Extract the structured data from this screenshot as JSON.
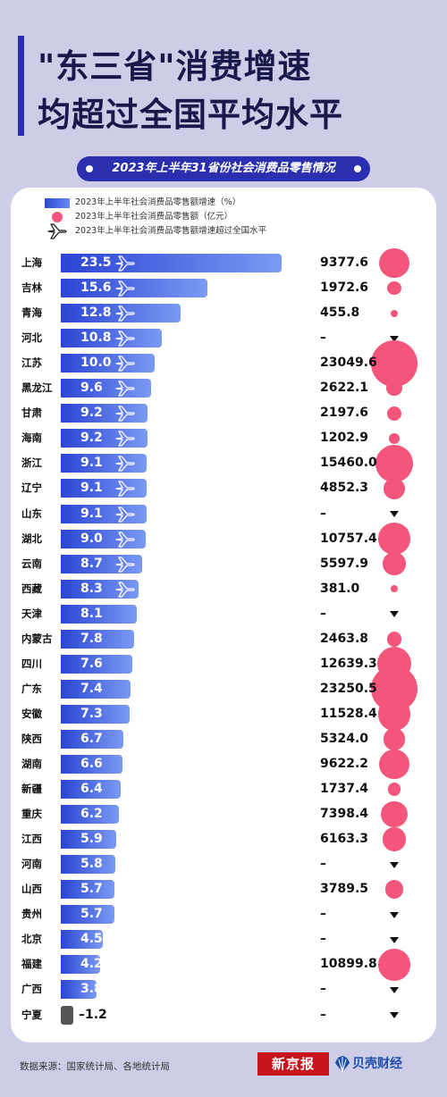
{
  "title_line1": "\"东三省\"消费增速",
  "title_line2": "均超过全国平均水平",
  "footer": {
    "source": "数据来源：国家统计局、各地统计局",
    "logo_xinjingbao": "新京报",
    "logo_beike": "贝壳财经"
  },
  "colors": {
    "bar_start": "#2b44d4",
    "bar_end": "#7b9af3",
    "bubble": "#f4557a",
    "negative": "#555555",
    "accent": "#2a2fb0"
  },
  "chart_data": {
    "type": "bar",
    "orientation": "horizontal",
    "title": "2023年上半年31省份社会消费品零售情况",
    "legend": [
      "2023年上半年社会消费品零售额增速（%）",
      "2023年上半年社会消费品零售额（亿元）",
      "2023年上半年社会消费品零售额增速超过全国水平"
    ],
    "missing_label": "–",
    "rows": [
      {
        "province": "上海",
        "growth": 23.5,
        "growth_label": "23.5",
        "retail": 9377.6,
        "retail_label": "9377.6",
        "above_national": true
      },
      {
        "province": "吉林",
        "growth": 15.6,
        "growth_label": "15.6",
        "retail": 1972.6,
        "retail_label": "1972.6",
        "above_national": true
      },
      {
        "province": "青海",
        "growth": 12.8,
        "growth_label": "12.8",
        "retail": 455.8,
        "retail_label": "455.8",
        "above_national": true
      },
      {
        "province": "河北",
        "growth": 10.8,
        "growth_label": "10.8",
        "retail": null,
        "retail_label": "–",
        "above_national": true
      },
      {
        "province": "江苏",
        "growth": 10.0,
        "growth_label": "10.0",
        "retail": 23049.6,
        "retail_label": "23049.6",
        "above_national": true
      },
      {
        "province": "黑龙江",
        "growth": 9.6,
        "growth_label": "9.6",
        "retail": 2622.1,
        "retail_label": "2622.1",
        "above_national": true
      },
      {
        "province": "甘肃",
        "growth": 9.2,
        "growth_label": "9.2",
        "retail": 2197.6,
        "retail_label": "2197.6",
        "above_national": true
      },
      {
        "province": "海南",
        "growth": 9.2,
        "growth_label": "9.2",
        "retail": 1202.9,
        "retail_label": "1202.9",
        "above_national": true
      },
      {
        "province": "浙江",
        "growth": 9.1,
        "growth_label": "9.1",
        "retail": 15460.0,
        "retail_label": "15460.0",
        "above_national": true
      },
      {
        "province": "辽宁",
        "growth": 9.1,
        "growth_label": "9.1",
        "retail": 4852.3,
        "retail_label": "4852.3",
        "above_national": true
      },
      {
        "province": "山东",
        "growth": 9.1,
        "growth_label": "9.1",
        "retail": null,
        "retail_label": "–",
        "above_national": true
      },
      {
        "province": "湖北",
        "growth": 9.0,
        "growth_label": "9.0",
        "retail": 10757.4,
        "retail_label": "10757.4",
        "above_national": true
      },
      {
        "province": "云南",
        "growth": 8.7,
        "growth_label": "8.7",
        "retail": 5597.9,
        "retail_label": "5597.9",
        "above_national": true
      },
      {
        "province": "西藏",
        "growth": 8.3,
        "growth_label": "8.3",
        "retail": 381.0,
        "retail_label": "381.0",
        "above_national": true
      },
      {
        "province": "天津",
        "growth": 8.1,
        "growth_label": "8.1",
        "retail": null,
        "retail_label": "–",
        "above_national": false
      },
      {
        "province": "内蒙古",
        "growth": 7.8,
        "growth_label": "7.8",
        "retail": 2463.8,
        "retail_label": "2463.8",
        "above_national": false
      },
      {
        "province": "四川",
        "growth": 7.6,
        "growth_label": "7.6",
        "retail": 12639.3,
        "retail_label": "12639.3",
        "above_national": false
      },
      {
        "province": "广东",
        "growth": 7.4,
        "growth_label": "7.4",
        "retail": 23250.5,
        "retail_label": "23250.5",
        "above_national": false
      },
      {
        "province": "安徽",
        "growth": 7.3,
        "growth_label": "7.3",
        "retail": 11528.4,
        "retail_label": "11528.4",
        "above_national": false
      },
      {
        "province": "陕西",
        "growth": 6.7,
        "growth_label": "6.7",
        "retail": 5324.0,
        "retail_label": "5324.0",
        "above_national": false
      },
      {
        "province": "湖南",
        "growth": 6.6,
        "growth_label": "6.6",
        "retail": 9622.2,
        "retail_label": "9622.2",
        "above_national": false
      },
      {
        "province": "新疆",
        "growth": 6.4,
        "growth_label": "6.4",
        "retail": 1737.4,
        "retail_label": "1737.4",
        "above_national": false
      },
      {
        "province": "重庆",
        "growth": 6.2,
        "growth_label": "6.2",
        "retail": 7398.4,
        "retail_label": "7398.4",
        "above_national": false
      },
      {
        "province": "江西",
        "growth": 5.9,
        "growth_label": "5.9",
        "retail": 6163.3,
        "retail_label": "6163.3",
        "above_national": false
      },
      {
        "province": "河南",
        "growth": 5.8,
        "growth_label": "5.8",
        "retail": null,
        "retail_label": "–",
        "above_national": false
      },
      {
        "province": "山西",
        "growth": 5.7,
        "growth_label": "5.7",
        "retail": 3789.5,
        "retail_label": "3789.5",
        "above_national": false
      },
      {
        "province": "贵州",
        "growth": 5.7,
        "growth_label": "5.7",
        "retail": null,
        "retail_label": "–",
        "above_national": false
      },
      {
        "province": "北京",
        "growth": 4.5,
        "growth_label": "4.5",
        "retail": null,
        "retail_label": "–",
        "above_national": false
      },
      {
        "province": "福建",
        "growth": 4.2,
        "growth_label": "4.2",
        "retail": 10899.8,
        "retail_label": "10899.8",
        "above_national": false
      },
      {
        "province": "广西",
        "growth": 3.8,
        "growth_label": "3.8",
        "retail": null,
        "retail_label": "–",
        "above_national": false
      },
      {
        "province": "宁夏",
        "growth": -1.2,
        "growth_label": "–1.2",
        "retail": null,
        "retail_label": "–",
        "above_national": false
      }
    ]
  }
}
